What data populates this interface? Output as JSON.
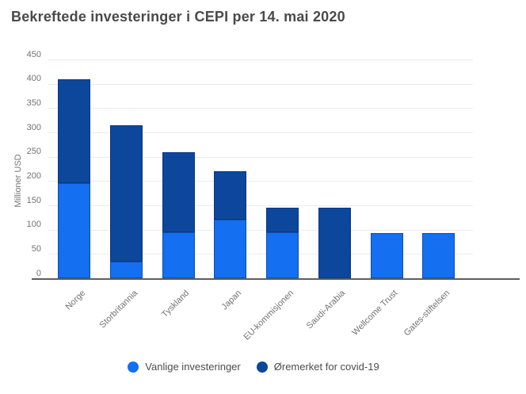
{
  "title": "Bekreftede investeringer i CEPI per 14. mai 2020",
  "chart_data": {
    "type": "bar",
    "stacked": true,
    "title": "Bekreftede investeringer i CEPI per 14. mai 2020",
    "xlabel": "",
    "ylabel": "Millioner USD",
    "ylim": [
      0,
      450
    ],
    "yticks": [
      0,
      50,
      100,
      150,
      200,
      250,
      300,
      350,
      400,
      450
    ],
    "grid": true,
    "legend_position": "bottom-center",
    "categories": [
      "Norge",
      "Storbritannia",
      "Tyskland",
      "Japan",
      "EU-kommisjonen",
      "Saudi-Arabia",
      "Wellcome Trust",
      "Gates-stiftelsen"
    ],
    "series": [
      {
        "name": "Vanlige investeringer",
        "color": "#146ff1",
        "values": [
          195,
          35,
          95,
          120,
          95,
          0,
          93,
          93
        ]
      },
      {
        "name": "Øremerket for covid-19",
        "color": "#0c479c",
        "values": [
          215,
          280,
          165,
          100,
          50,
          145,
          0,
          0
        ]
      }
    ],
    "totals": [
      410,
      315,
      260,
      220,
      145,
      145,
      93,
      93
    ]
  },
  "colors": {
    "regular_series": "#146ff1",
    "covid_series": "#0c479c",
    "title_text": "#4a4a4a",
    "axis_text": "#737373",
    "gridline": "#ebebeb",
    "axis_line": "#5d5e60"
  }
}
